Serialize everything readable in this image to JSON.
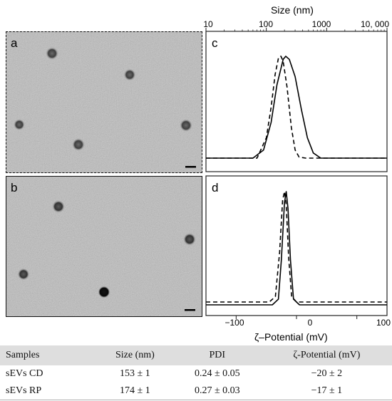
{
  "panels": {
    "a": "a",
    "b": "b",
    "c": "c",
    "d": "d"
  },
  "size_axis": {
    "title": "Size (nm)",
    "ticks": [
      "10",
      "100",
      "1000",
      "10, 000"
    ]
  },
  "zeta_axis": {
    "title": "ζ–Potential (mV)",
    "ticks": [
      "−100",
      "0",
      "100"
    ]
  },
  "table": {
    "headers": [
      "Samples",
      "Size (nm)",
      "PDI",
      "ζ-Potential (mV)"
    ],
    "rows": [
      [
        "sEVs CD",
        "153 ± 1",
        "0.24 ± 0.05",
        "−20 ± 2"
      ],
      [
        "sEVs RP",
        "174 ± 1",
        "0.27 ± 0.03",
        "−17 ± 1"
      ]
    ]
  },
  "chart_data": [
    {
      "type": "line",
      "panel": "c",
      "xlabel": "Size (nm)",
      "xscale": "log",
      "xlim": [
        10,
        10000
      ],
      "xticks": [
        10,
        100,
        1000,
        10000
      ],
      "series": [
        {
          "style": "solid",
          "x": [
            60,
            90,
            120,
            150,
            190,
            210,
            240,
            300,
            380,
            480,
            600,
            800
          ],
          "y": [
            0.0,
            0.08,
            0.35,
            0.72,
            0.97,
            1.0,
            0.97,
            0.8,
            0.48,
            0.2,
            0.05,
            0.0
          ]
        },
        {
          "style": "dashed",
          "x": [
            70,
            100,
            120,
            140,
            160,
            175,
            190,
            220,
            260,
            300,
            350,
            450
          ],
          "y": [
            0.0,
            0.2,
            0.5,
            0.82,
            0.99,
            1.0,
            0.95,
            0.7,
            0.3,
            0.08,
            0.01,
            0.0
          ]
        }
      ]
    },
    {
      "type": "line",
      "panel": "d",
      "xlabel": "ζ–Potential (mV)",
      "xlim": [
        -150,
        150
      ],
      "xticks": [
        -100,
        0,
        100
      ],
      "series": [
        {
          "style": "solid",
          "x": [
            -40,
            -30,
            -25,
            -20,
            -17,
            -14,
            -10,
            -5,
            5
          ],
          "y": [
            0.0,
            0.05,
            0.4,
            0.9,
            1.0,
            0.85,
            0.4,
            0.05,
            0.0
          ]
        },
        {
          "style": "dashed",
          "x": [
            -45,
            -35,
            -28,
            -23,
            -20,
            -17,
            -13,
            -8,
            0
          ],
          "y": [
            0.0,
            0.05,
            0.45,
            0.92,
            1.0,
            0.88,
            0.4,
            0.05,
            0.0
          ]
        }
      ]
    }
  ]
}
